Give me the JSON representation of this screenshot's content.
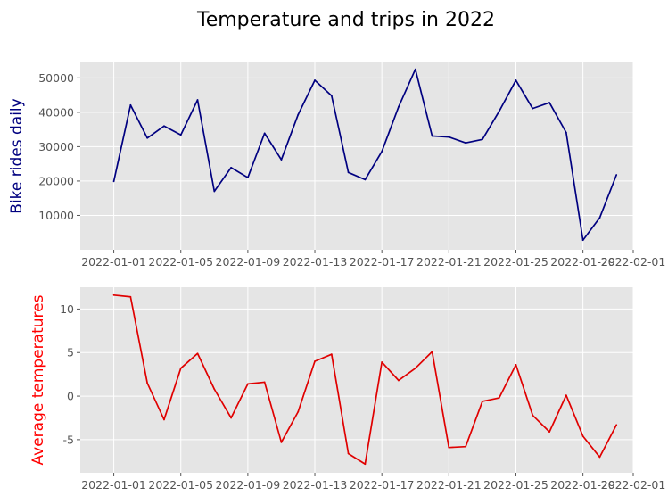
{
  "figure": {
    "title": "Temperature and trips in 2022"
  },
  "chart_data": [
    {
      "type": "line",
      "title": "",
      "xlabel": "",
      "ylabel": "Bike rides daily",
      "ylabel_color": "#000080",
      "line_color": "#000080",
      "grid": true,
      "x_ticks": [
        "2022-01-01",
        "2022-01-05",
        "2022-01-09",
        "2022-01-13",
        "2022-01-17",
        "2022-01-21",
        "2022-01-25",
        "2022-01-29",
        "2022-02-01"
      ],
      "y_ticks": [
        10000,
        20000,
        30000,
        40000,
        50000
      ],
      "xlim": [
        "2021-12-30",
        "2022-02-01"
      ],
      "ylim": [
        0,
        54500
      ],
      "x": [
        "2022-01-01",
        "2022-01-02",
        "2022-01-03",
        "2022-01-04",
        "2022-01-05",
        "2022-01-06",
        "2022-01-07",
        "2022-01-08",
        "2022-01-09",
        "2022-01-10",
        "2022-01-11",
        "2022-01-12",
        "2022-01-13",
        "2022-01-14",
        "2022-01-15",
        "2022-01-16",
        "2022-01-17",
        "2022-01-18",
        "2022-01-19",
        "2022-01-20",
        "2022-01-21",
        "2022-01-22",
        "2022-01-23",
        "2022-01-24",
        "2022-01-25",
        "2022-01-26",
        "2022-01-27",
        "2022-01-28",
        "2022-01-29",
        "2022-01-30",
        "2022-01-31"
      ],
      "series": [
        {
          "values": [
            19900,
            42100,
            32500,
            36000,
            33400,
            43600,
            17000,
            23900,
            21000,
            33900,
            26200,
            39300,
            49300,
            44800,
            22500,
            20400,
            28600,
            41600,
            52500,
            33100,
            32800,
            31100,
            32100,
            40300,
            49300,
            41100,
            42800,
            34100,
            2800,
            9300,
            21800
          ]
        }
      ]
    },
    {
      "type": "line",
      "title": "",
      "xlabel": "",
      "ylabel": "Average temperatures",
      "ylabel_color": "#ff0000",
      "line_color": "#e00000",
      "grid": true,
      "x_ticks": [
        "2022-01-01",
        "2022-01-05",
        "2022-01-09",
        "2022-01-13",
        "2022-01-17",
        "2022-01-21",
        "2022-01-25",
        "2022-01-29",
        "2022-02-01"
      ],
      "y_ticks": [
        -5,
        0,
        5,
        10
      ],
      "xlim": [
        "2021-12-30",
        "2022-02-01"
      ],
      "ylim": [
        -8.8,
        12.5
      ],
      "x": [
        "2022-01-01",
        "2022-01-02",
        "2022-01-03",
        "2022-01-04",
        "2022-01-05",
        "2022-01-06",
        "2022-01-07",
        "2022-01-08",
        "2022-01-09",
        "2022-01-10",
        "2022-01-11",
        "2022-01-12",
        "2022-01-13",
        "2022-01-14",
        "2022-01-15",
        "2022-01-16",
        "2022-01-17",
        "2022-01-18",
        "2022-01-19",
        "2022-01-20",
        "2022-01-21",
        "2022-01-22",
        "2022-01-23",
        "2022-01-24",
        "2022-01-25",
        "2022-01-26",
        "2022-01-27",
        "2022-01-28",
        "2022-01-29",
        "2022-01-30",
        "2022-01-31"
      ],
      "series": [
        {
          "values": [
            11.6,
            11.4,
            1.5,
            -2.7,
            3.2,
            4.9,
            0.8,
            -2.5,
            1.4,
            1.6,
            -5.3,
            -1.8,
            4.0,
            4.8,
            -6.6,
            -7.8,
            3.9,
            1.8,
            3.2,
            5.1,
            -5.9,
            -5.8,
            -0.6,
            -0.2,
            3.6,
            -2.2,
            -4.1,
            0.1,
            -4.6,
            -7.0,
            -3.3
          ]
        }
      ]
    }
  ]
}
